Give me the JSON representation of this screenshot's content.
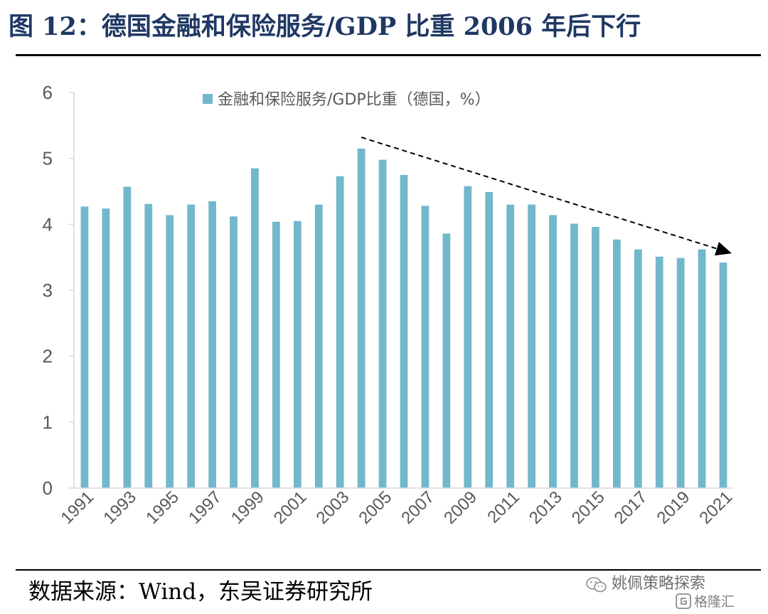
{
  "figure_title": "图 12：德国金融和保险服务/GDP 比重 2006 年后下行",
  "source_note": "数据来源：Wind，东吴证券研究所",
  "watermark": {
    "name": "姚佩策略探索",
    "brand": "格隆汇",
    "icon": "wechat-icon",
    "logo": "gelonghui-logo-icon"
  },
  "colors": {
    "title": "#1f3864",
    "bar": "#72b8cc",
    "axis": "#d9d9d9",
    "tick_text": "#595959",
    "trend_arrow": "#000000"
  },
  "chart_data": {
    "type": "bar",
    "title": "",
    "xlabel": "",
    "ylabel": "",
    "ylim": [
      0,
      6
    ],
    "yticks": [
      0,
      1,
      2,
      3,
      4,
      5,
      6
    ],
    "grid": false,
    "legend_position": "top-center",
    "series": [
      {
        "name": "金融和保险服务/GDP比重（德国，%）",
        "values": [
          4.27,
          4.24,
          4.57,
          4.31,
          4.14,
          4.3,
          4.35,
          4.12,
          4.85,
          4.04,
          4.05,
          4.3,
          4.73,
          5.15,
          4.98,
          4.75,
          4.28,
          3.86,
          4.58,
          4.49,
          4.3,
          4.3,
          4.14,
          4.01,
          3.96,
          3.77,
          3.62,
          3.51,
          3.49,
          3.62,
          3.42
        ]
      }
    ],
    "x": [
      "1991",
      "1992",
      "1993",
      "1994",
      "1995",
      "1996",
      "1997",
      "1998",
      "1999",
      "2000",
      "2001",
      "2002",
      "2003",
      "2004",
      "2005",
      "2006",
      "2007",
      "2008",
      "2009",
      "2010",
      "2011",
      "2012",
      "2013",
      "2014",
      "2015",
      "2016",
      "2017",
      "2018",
      "2019",
      "2020",
      "2021"
    ],
    "x_tick_labels": [
      "1991",
      "",
      "1993",
      "",
      "1995",
      "",
      "1997",
      "",
      "1999",
      "",
      "2001",
      "",
      "2003",
      "",
      "2005",
      "",
      "2007",
      "",
      "2009",
      "",
      "2011",
      "",
      "2013",
      "",
      "2015",
      "",
      "2017",
      "",
      "2019",
      "",
      "2021"
    ],
    "annotations": [
      {
        "type": "arrow",
        "style": "dashed",
        "from": {
          "x": "2004",
          "y": 5.32
        },
        "to": {
          "x": "2021",
          "y": 3.56
        }
      }
    ]
  }
}
